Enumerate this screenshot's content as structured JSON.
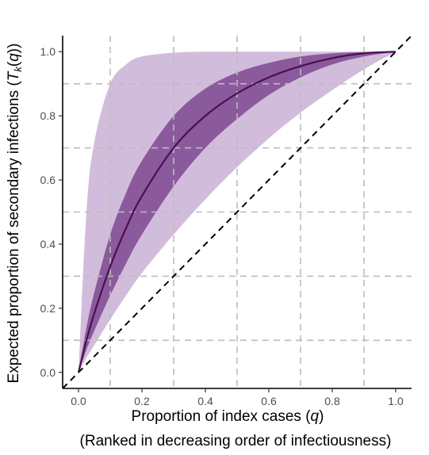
{
  "chart_data": {
    "type": "area",
    "xlabel": {
      "main": "Proportion of index cases (",
      "var": "q",
      "close": ")"
    },
    "xlabel_line2": "(Ranked in decreasing order of infectiousness)",
    "ylabel": {
      "main": "Expected proportion of secondary infections (",
      "var": "T",
      "sub": "k",
      "open": "(",
      "var2": "q",
      "close": "))"
    },
    "xlim": [
      -0.05,
      1.05
    ],
    "ylim": [
      -0.05,
      1.05
    ],
    "x_ticks": [
      "0.0",
      "0.2",
      "0.4",
      "0.6",
      "0.8",
      "1.0"
    ],
    "y_ticks": [
      "0.0",
      "0.2",
      "0.4",
      "0.6",
      "0.8",
      "1.0"
    ],
    "reference_lines": {
      "vertical": [
        0.1,
        0.3,
        0.5,
        0.7,
        0.9
      ],
      "horizontal": [
        0.1,
        0.3,
        0.5,
        0.7,
        0.9
      ]
    },
    "diagonal": {
      "x": [
        0,
        1
      ],
      "y": [
        0,
        1
      ]
    },
    "x": [
      0,
      0.025,
      0.05,
      0.1,
      0.15,
      0.2,
      0.3,
      0.4,
      0.5,
      0.6,
      0.7,
      0.8,
      0.9,
      1.0
    ],
    "series": [
      {
        "role": "outer-band-upper",
        "values": [
          0,
          0.5,
          0.72,
          0.9,
          0.96,
          0.985,
          0.997,
          1.0,
          1.0,
          1.0,
          1.0,
          1.0,
          1.0,
          1.0
        ]
      },
      {
        "role": "outer-band-lower",
        "values": [
          0,
          0.045,
          0.085,
          0.165,
          0.24,
          0.31,
          0.43,
          0.54,
          0.64,
          0.73,
          0.81,
          0.88,
          0.945,
          1.0
        ]
      },
      {
        "role": "inner-band-upper",
        "values": [
          0,
          0.14,
          0.25,
          0.43,
          0.56,
          0.66,
          0.8,
          0.885,
          0.935,
          0.965,
          0.985,
          0.995,
          0.999,
          1.0
        ]
      },
      {
        "role": "inner-band-lower",
        "values": [
          0,
          0.07,
          0.13,
          0.24,
          0.34,
          0.43,
          0.58,
          0.7,
          0.79,
          0.865,
          0.92,
          0.96,
          0.985,
          1.0
        ]
      },
      {
        "role": "median",
        "values": [
          0,
          0.1,
          0.185,
          0.33,
          0.45,
          0.55,
          0.7,
          0.8,
          0.87,
          0.92,
          0.955,
          0.98,
          0.995,
          1.0
        ]
      }
    ],
    "colors": {
      "outer_band": "#d2bcdc",
      "inner_band": "#8b5a9c",
      "median_line": "#4a0f52",
      "reference_line": "#bdbdbd",
      "diagonal": "#000000",
      "axis": "#000000"
    },
    "grid": false,
    "legend": "none"
  }
}
